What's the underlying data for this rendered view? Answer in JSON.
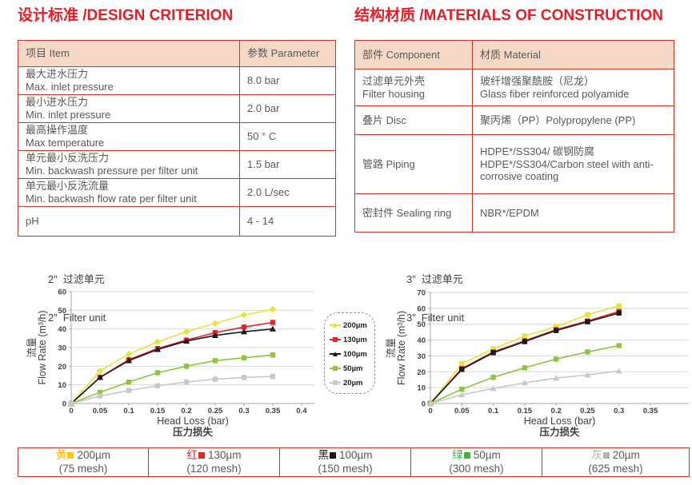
{
  "headings": {
    "left": "设计标准 /DESIGN CRITERION",
    "right": "结构材质 /MATERIALS OF CONSTRUCTION"
  },
  "colors": {
    "accent_red": "#e81c24",
    "table_border": "#c0392b",
    "table_header_bg": "#f5d9c6",
    "body_text": "#595959",
    "gridline": "#d9d9d9"
  },
  "design_table": {
    "headers": [
      "项目 Item",
      "参数 Parameter"
    ],
    "rows": [
      {
        "item_cn": "最大进水压力",
        "item_en": "Max. inlet pressure",
        "value": "8.0 bar"
      },
      {
        "item_cn": "最小进水压力",
        "item_en": "Min. inlet pressure",
        "value": "2.0 bar"
      },
      {
        "item_cn": "最高操作温度",
        "item_en": "Max temperature",
        "value": "50 ° C"
      },
      {
        "item_cn": "单元最小反洗压力",
        "item_en": "Min. backwash pressure per filter unit",
        "value": "1.5 bar"
      },
      {
        "item_cn": "单元最小反洗流量",
        "item_en": "Min. backwash flow rate per filter unit",
        "value": "2.0 L/sec"
      },
      {
        "item_cn": "pH",
        "item_en": "",
        "value": "4 - 14"
      }
    ]
  },
  "materials_table": {
    "headers": [
      "部件 Component",
      "材质 Material"
    ],
    "rows": [
      {
        "component_cn": "过滤单元外壳",
        "component_en": "Filter housing",
        "material_cn": "玻纤增强聚酰胺（尼龙）",
        "material_en": "Glass fiber reinforced polyamide"
      },
      {
        "component_cn": "叠片 Disc",
        "component_en": "",
        "material_cn": "聚丙烯（PP）Polypropylene (PP)",
        "material_en": ""
      },
      {
        "component_cn": "管路 Piping",
        "component_en": "",
        "material_cn": "HDPE*/SS304/ 碳钢防腐",
        "material_en": "HDPE*/SS304/Carbon steel with anti-corrosive coating"
      },
      {
        "component_cn": "密封件 Sealing ring",
        "component_en": "",
        "material_cn": "NBR*/EPDM",
        "material_en": ""
      }
    ]
  },
  "chart_data": [
    {
      "type": "line",
      "title_cn": "2”  过滤单元",
      "title_en": "2”  Filter unit",
      "xlabel_en": "Head Loss (bar)",
      "xlabel_cn": "压力损失",
      "ylabel_cn": "流量",
      "ylabel_en": "Flow Rate (m³/h)",
      "xlim": [
        0,
        0.4
      ],
      "ylim": [
        0,
        60
      ],
      "ytick_step": 10,
      "xticks": [
        "0",
        "0.05",
        "0.1",
        "0.15",
        "0.2",
        "0.25",
        "0.3",
        "0.35",
        "0.4"
      ],
      "x": [
        0,
        0.05,
        0.1,
        0.15,
        0.2,
        0.25,
        0.3,
        0.35
      ],
      "grid": true,
      "legend_position": "right-outside",
      "series": [
        {
          "name": "200µm",
          "color": "#e8e23c",
          "marker": "diamond",
          "values": [
            0,
            17.5,
            26.5,
            33,
            38.5,
            43,
            47.5,
            50.5
          ]
        },
        {
          "name": "130µm",
          "color": "#e02727",
          "marker": "square",
          "values": [
            0,
            14,
            23.5,
            29.5,
            34,
            38,
            41,
            43.5
          ]
        },
        {
          "name": "100µm",
          "color": "#1a1a1a",
          "marker": "triangle",
          "values": [
            0,
            14,
            23,
            29,
            33.5,
            36.5,
            38.5,
            40
          ]
        },
        {
          "name": "50µm",
          "color": "#8cc63f",
          "marker": "square",
          "values": [
            0,
            6,
            11.5,
            16.5,
            20,
            23,
            24.5,
            26
          ]
        },
        {
          "name": "20µm",
          "color": "#c8c8c8",
          "marker": "square",
          "values": [
            0,
            4,
            7,
            9.5,
            11.5,
            13,
            14,
            14.5
          ]
        }
      ]
    },
    {
      "type": "line",
      "title_cn": "3”  过滤单元",
      "title_en": "3”  Filter unit",
      "xlabel_en": "Head Loss (bar)",
      "xlabel_cn": "压力损失",
      "ylabel_cn": "流量",
      "ylabel_en": "Flow Rate (m³/h)",
      "xlim": [
        0,
        0.35
      ],
      "ylim": [
        0,
        70
      ],
      "ytick_step": 10,
      "xticks": [
        "0",
        "0.05",
        "0.1",
        "0.15",
        "0.2",
        "0.25",
        "0.3",
        "0.35"
      ],
      "x": [
        0,
        0.05,
        0.1,
        0.15,
        0.2,
        0.25,
        0.3
      ],
      "grid": true,
      "legend_position": "none",
      "series": [
        {
          "name": "200µm",
          "color": "#e8e23c",
          "marker": "square",
          "values": [
            0,
            25,
            34.5,
            42.5,
            48.5,
            56,
            61.5
          ]
        },
        {
          "name": "130µm",
          "color": "#e02727",
          "marker": "square",
          "values": [
            0,
            22,
            32.5,
            39.5,
            46.5,
            52,
            58
          ]
        },
        {
          "name": "100µm",
          "color": "#1a1a1a",
          "marker": "square",
          "values": [
            0,
            21.5,
            32,
            39,
            46,
            51.5,
            57
          ]
        },
        {
          "name": "50µm",
          "color": "#8cc63f",
          "marker": "square",
          "values": [
            0,
            9,
            16.5,
            22.5,
            28,
            32.5,
            36.5
          ]
        },
        {
          "name": "20µm",
          "color": "#c8c8c8",
          "marker": "triangle",
          "values": [
            0,
            5.5,
            9.5,
            13,
            16,
            18,
            20.5
          ]
        }
      ]
    }
  ],
  "chart_legend": {
    "items": [
      {
        "label": "200µm",
        "color": "#e8e23c",
        "marker": "diamond"
      },
      {
        "label": "130µm",
        "color": "#e02727",
        "marker": "square"
      },
      {
        "label": "100µm",
        "color": "#1a1a1a",
        "marker": "triangle"
      },
      {
        "label": "50µm",
        "color": "#8cc63f",
        "marker": "square"
      },
      {
        "label": "20µm",
        "color": "#c8c8c8",
        "marker": "square"
      }
    ]
  },
  "bottom_legend": {
    "cells": [
      {
        "color_cn": "黄",
        "char_color": "#f0b41e",
        "swatch": "#ffc712",
        "size": "200µm",
        "mesh": "(75 mesh)"
      },
      {
        "color_cn": "红",
        "char_color": "#e02727",
        "swatch": "#e02727",
        "size": "130µm",
        "mesh": "(120 mesh)"
      },
      {
        "color_cn": "黑",
        "char_color": "#1a1a1a",
        "swatch": "#1a1a1a",
        "size": "100µm",
        "mesh": "(150 mesh)"
      },
      {
        "color_cn": "绿",
        "char_color": "#3cb043",
        "swatch": "#44b049",
        "size": "50µm",
        "mesh": "(300 mesh)"
      },
      {
        "color_cn": "灰",
        "char_color": "#b3b3b3",
        "swatch": "#b3b3b3",
        "size": "20µm",
        "mesh": "(625 mesh)"
      }
    ]
  }
}
